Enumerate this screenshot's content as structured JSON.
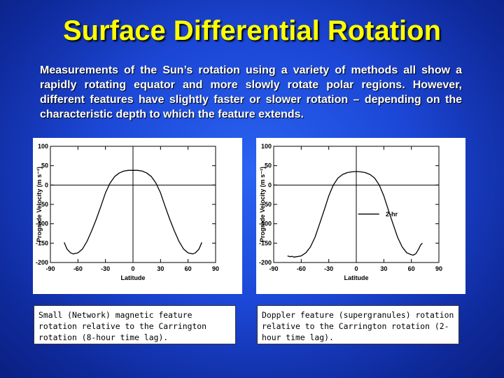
{
  "slide": {
    "title": "Surface Differential Rotation",
    "intro": "Measurements of the Sun’s rotation using a variety of methods all show a rapidly rotating equator and more slowly rotate polar regions. However, different features have slightly faster or slower rotation – depending on the characteristic depth to which the feature extends."
  },
  "captions": {
    "left": "Small (Network) magnetic feature rotation relative to the Carrington rotation (8-hour time lag).",
    "right": "Doppler feature (supergranules) rotation relative to the Carrington rotation (2-hour time lag)."
  },
  "colors": {
    "title": "#ffff00",
    "background": "#1c47d6",
    "curve": "#000000"
  },
  "chart_data": [
    {
      "type": "line",
      "xlabel": "Latitude",
      "ylabel": "Prograde Velocity (m s⁻¹)",
      "xlim": [
        -90,
        90
      ],
      "ylim": [
        -200,
        100
      ],
      "xticks": [
        "-90",
        "-60",
        "-30",
        "0",
        "30",
        "60",
        "90"
      ],
      "yticks": [
        "100",
        "50",
        "0",
        "-50",
        "-100",
        "-150",
        "-200"
      ],
      "grid": false,
      "zero_lines": true,
      "series": [
        {
          "x": [
            -75,
            -72,
            -70,
            -68,
            -65,
            -60,
            -55,
            -50,
            -45,
            -40,
            -35,
            -30,
            -25,
            -20,
            -15,
            -10,
            -5,
            0,
            5,
            10,
            15,
            20,
            25,
            30,
            35,
            40,
            45,
            50,
            55,
            60,
            65,
            68,
            70,
            72,
            75
          ],
          "y": [
            -148,
            -165,
            -170,
            -175,
            -178,
            -175,
            -165,
            -145,
            -118,
            -88,
            -55,
            -20,
            5,
            22,
            31,
            36,
            38,
            38,
            38,
            36,
            31,
            22,
            5,
            -20,
            -55,
            -88,
            -118,
            -145,
            -165,
            -175,
            -178,
            -175,
            -170,
            -165,
            -148
          ]
        }
      ]
    },
    {
      "type": "line",
      "xlabel": "Latitude",
      "ylabel": "Prograde Velocity (m s⁻¹)",
      "xlim": [
        -90,
        90
      ],
      "ylim": [
        -200,
        100
      ],
      "xticks": [
        "-90",
        "-60",
        "-30",
        "0",
        "30",
        "60",
        "90"
      ],
      "yticks": [
        "100",
        "50",
        "0",
        "-50",
        "-100",
        "-150",
        "-200"
      ],
      "grid": false,
      "zero_lines": true,
      "legend": "upper-right",
      "series": [
        {
          "name": "2-hr",
          "x": [
            -75,
            -72,
            -70,
            -68,
            -65,
            -60,
            -55,
            -50,
            -45,
            -40,
            -35,
            -30,
            -25,
            -20,
            -15,
            -10,
            -5,
            0,
            5,
            10,
            15,
            20,
            25,
            30,
            35,
            40,
            45,
            50,
            55,
            60,
            62,
            65,
            68,
            70,
            72
          ],
          "y": [
            -183,
            -185,
            -184,
            -186,
            -185,
            -183,
            -175,
            -160,
            -135,
            -100,
            -65,
            -28,
            0,
            18,
            27,
            32,
            34,
            35,
            34,
            32,
            27,
            18,
            0,
            -28,
            -65,
            -100,
            -135,
            -160,
            -175,
            -180,
            -181,
            -177,
            -165,
            -155,
            -150
          ]
        }
      ]
    }
  ]
}
